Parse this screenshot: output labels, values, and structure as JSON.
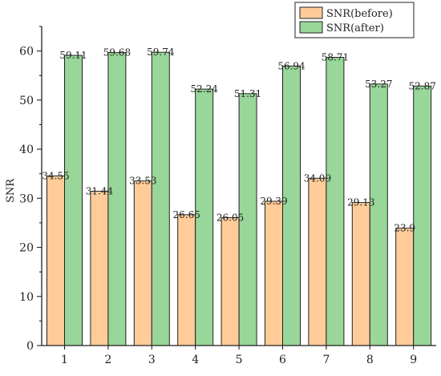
{
  "chart_data": {
    "type": "bar",
    "categories": [
      "1",
      "2",
      "3",
      "4",
      "5",
      "6",
      "7",
      "8",
      "9"
    ],
    "series": [
      {
        "name": "SNR(before)",
        "values": [
          34.55,
          31.44,
          33.53,
          26.65,
          26.05,
          29.39,
          34.09,
          29.13,
          23.9
        ],
        "labels": [
          "34.55",
          "31.44",
          "33.53",
          "26.65",
          "26.05",
          "29.39",
          "34.09",
          "29.13",
          "23.9"
        ],
        "color": "#FFCC99"
      },
      {
        "name": "SNR(after)",
        "values": [
          59.11,
          59.68,
          59.74,
          52.24,
          51.31,
          56.94,
          58.71,
          53.27,
          52.87
        ],
        "labels": [
          "59.11",
          "59.68",
          "59.74",
          "52.24",
          "51.31",
          "56.94",
          "58.71",
          "53.27",
          "52.87"
        ],
        "color": "#99D699"
      }
    ],
    "title": "",
    "xlabel": "",
    "ylabel": "SNR",
    "ylim": [
      0,
      65
    ],
    "yticks": [
      0,
      10,
      20,
      30,
      40,
      50,
      60
    ],
    "ytick_labels": [
      "0",
      "10",
      "20",
      "30",
      "40",
      "50",
      "60"
    ],
    "grid": false,
    "legend_position": "top-right"
  }
}
